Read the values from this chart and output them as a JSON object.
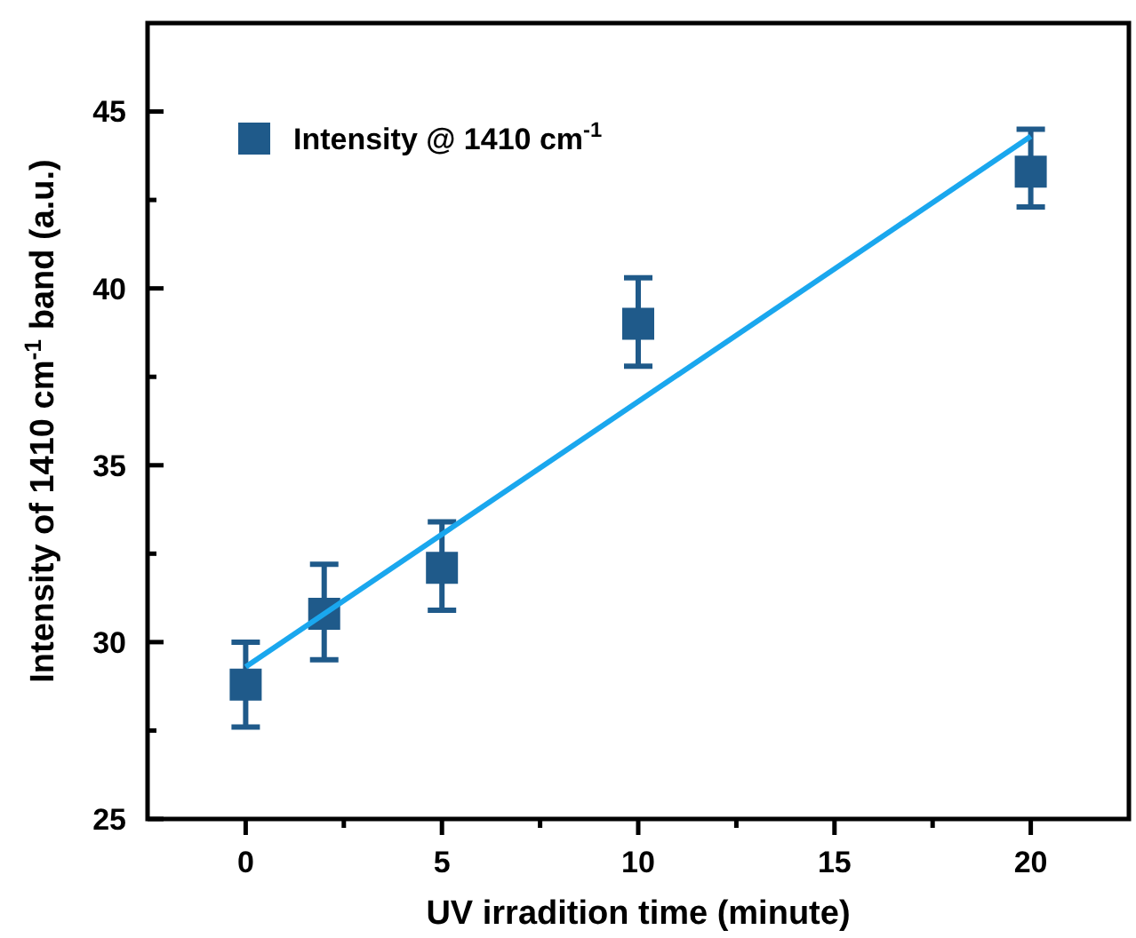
{
  "chart_data": {
    "type": "scatter",
    "xlabel": "UV irradition time (minute)",
    "ylabel": "Intensity of 1410 cm$^{-1}$ band (a.u.)",
    "xlim": [
      -2.5,
      22.5
    ],
    "ylim": [
      25,
      47.5
    ],
    "xticks": [
      0,
      {
        "value": 2.5,
        "label": null
      },
      5,
      {
        "value": 7.5,
        "label": null
      },
      10,
      {
        "value": 12.5,
        "label": null
      },
      15,
      {
        "value": 17.5,
        "label": null
      },
      20
    ],
    "yticks": [
      25,
      {
        "value": 27.5,
        "label": null
      },
      30,
      {
        "value": 32.5,
        "label": null
      },
      35,
      {
        "value": 37.5,
        "label": null
      },
      40,
      {
        "value": 42.5,
        "label": null
      },
      45
    ],
    "grid": false,
    "legend": "top left",
    "series": [
      {
        "name": "Intensity @ 1410 cm$^{-1}$",
        "marker": "square",
        "color": "#1f5a8a",
        "x": [
          0,
          2,
          5,
          10,
          20
        ],
        "values": [
          28.8,
          30.8,
          32.1,
          39.0,
          43.3
        ],
        "errors": [
          [
            27.6,
            30.0
          ],
          [
            29.5,
            32.2
          ],
          [
            30.9,
            33.4
          ],
          [
            37.8,
            40.3
          ],
          [
            42.3,
            44.5
          ]
        ]
      },
      {
        "type": "line",
        "marker": "none",
        "color": "#1aa7ee",
        "line_style": "solid",
        "x": [
          0,
          20
        ],
        "values": [
          29.3,
          44.3
        ]
      }
    ]
  }
}
